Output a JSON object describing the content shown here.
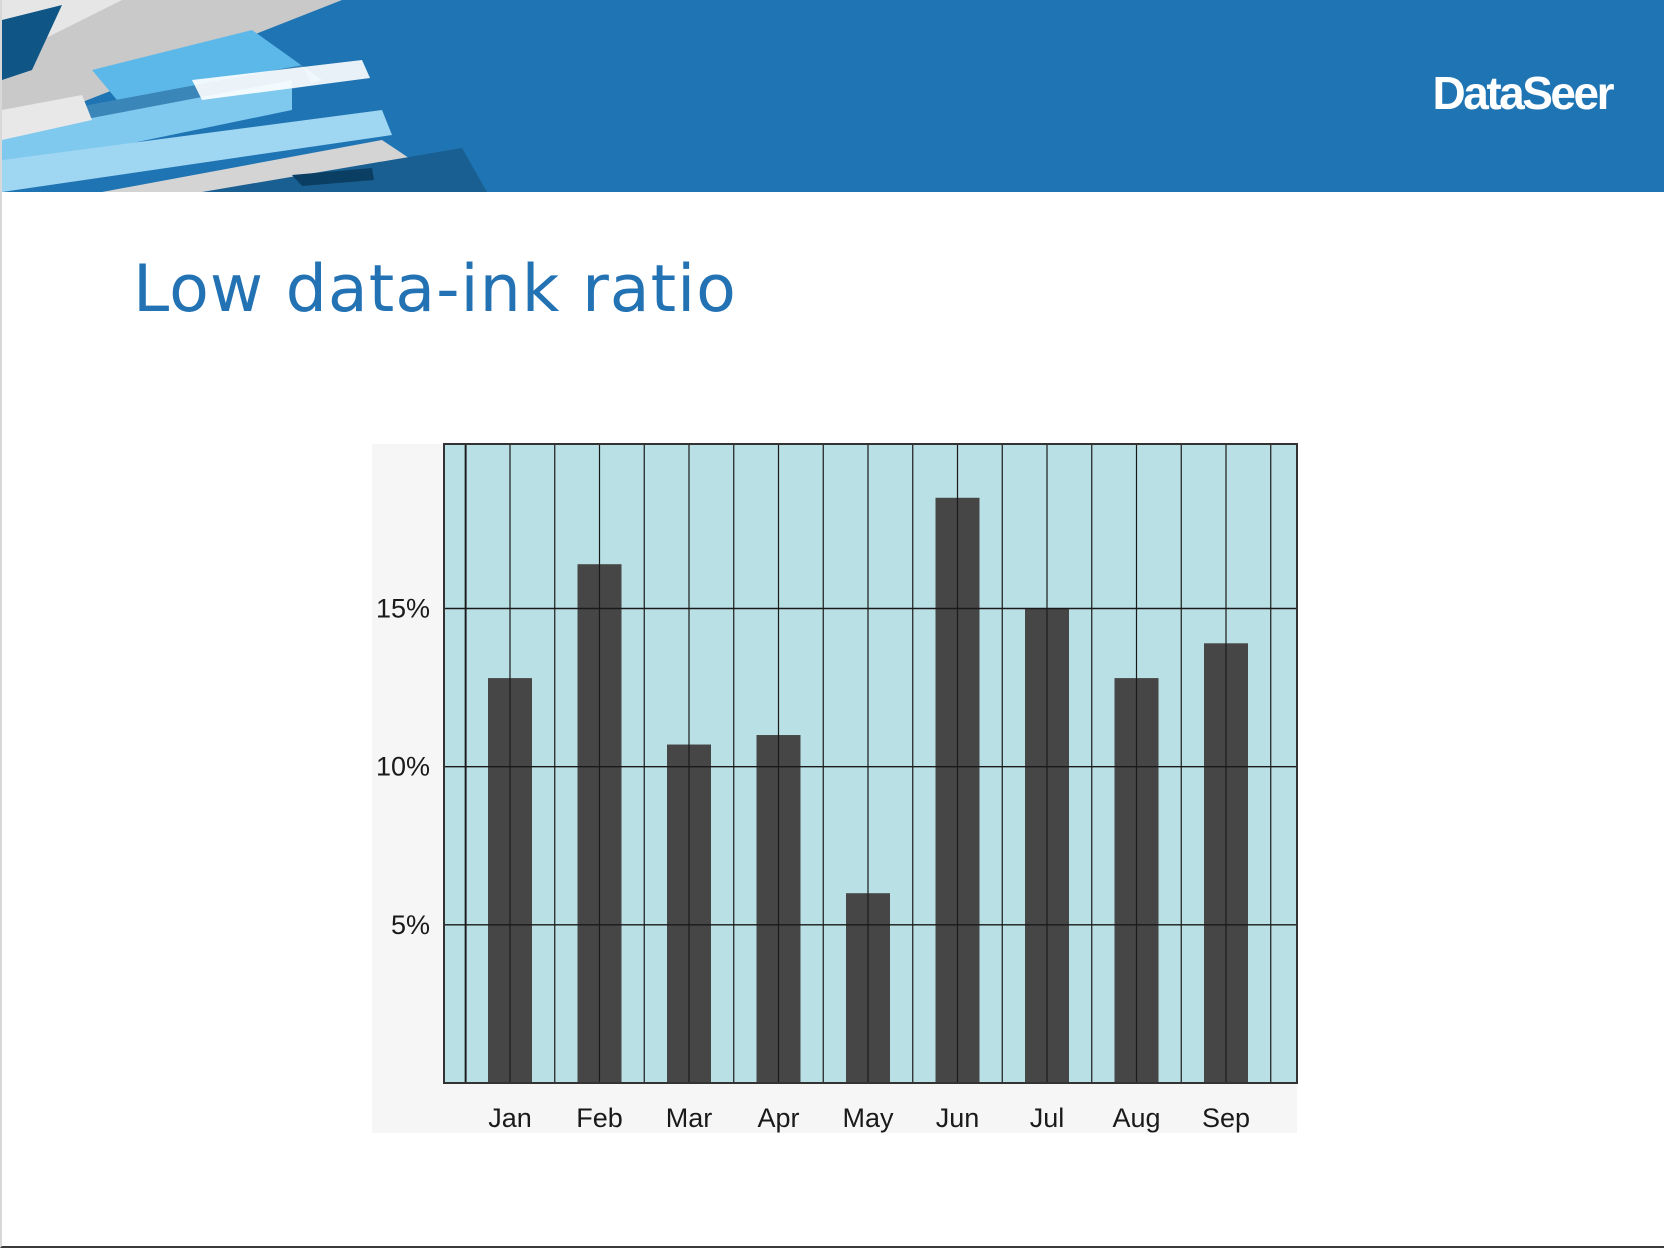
{
  "banner": {
    "brand_color": "#1f74b3",
    "logo_text": "DataSeer"
  },
  "slide": {
    "title": "Low data-ink ratio",
    "title_color": "#2372b4"
  },
  "chart_data": {
    "type": "bar",
    "title": "",
    "xlabel": "",
    "ylabel": "",
    "categories": [
      "Jan",
      "Feb",
      "Mar",
      "Apr",
      "May",
      "Jun",
      "Jul",
      "Aug",
      "Sep"
    ],
    "values": [
      12.8,
      16.4,
      10.7,
      11.0,
      6.0,
      18.5,
      15.0,
      12.8,
      13.9
    ],
    "yticks": [
      {
        "value": 5,
        "label": "5%"
      },
      {
        "value": 10,
        "label": "10%"
      },
      {
        "value": 15,
        "label": "15%"
      }
    ],
    "ylim": [
      0,
      20.2
    ],
    "grid": true,
    "plot_background": "#b9e0e4",
    "bar_color": "#464646",
    "grid_color": "#1a1a1a"
  }
}
